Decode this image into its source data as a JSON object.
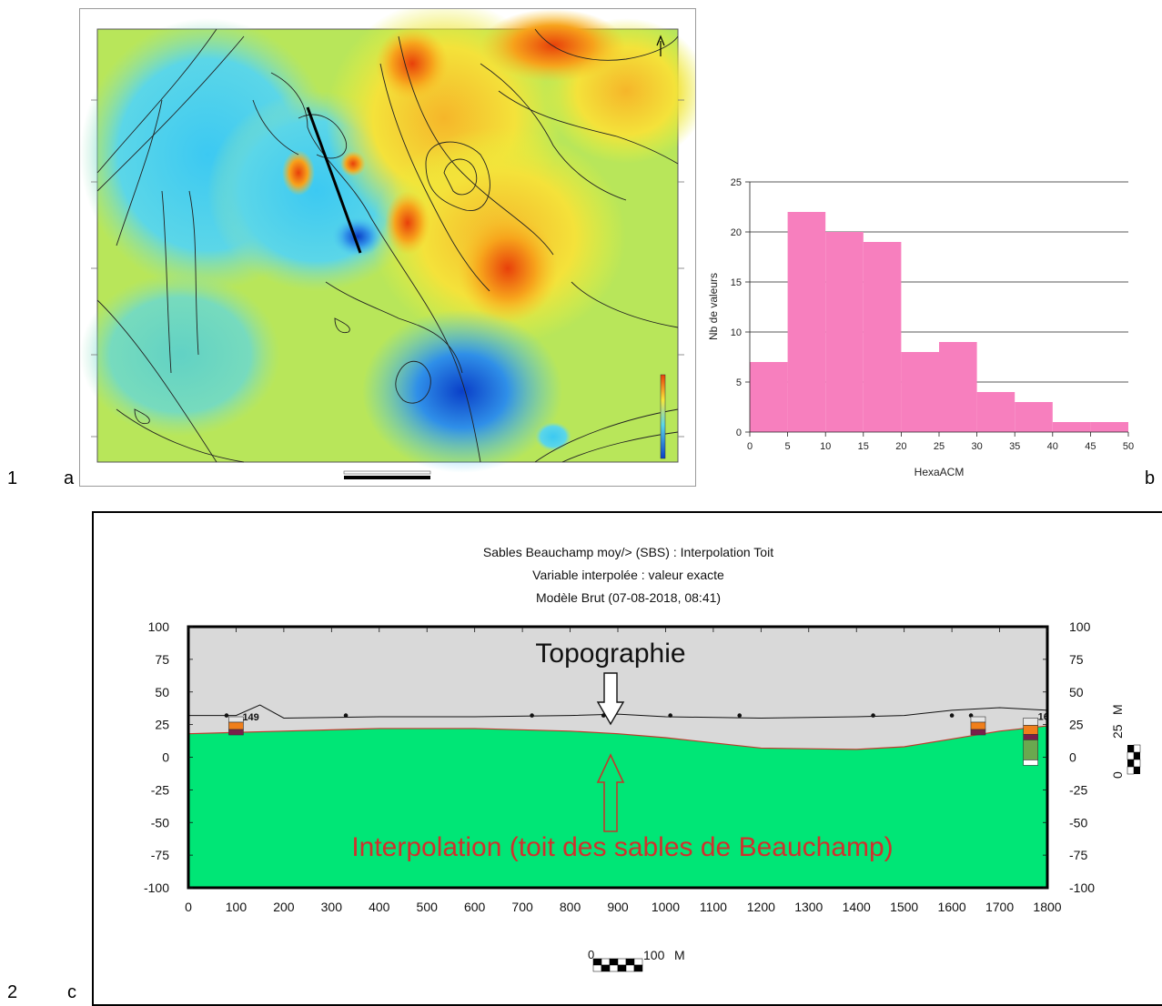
{
  "labels": {
    "row1": "1",
    "row2": "2",
    "a": "a",
    "b": "b",
    "c": "c"
  },
  "histogram": {
    "chart_data": {
      "type": "bar",
      "xlabel": "HexaACM",
      "ylabel": "Nb de valeurs",
      "bin_edges": [
        0,
        5,
        10,
        15,
        20,
        25,
        30,
        35,
        40,
        45,
        50
      ],
      "values": [
        7,
        22,
        20,
        19,
        8,
        9,
        4,
        3,
        1,
        1
      ],
      "xlim": [
        0,
        50
      ],
      "ylim": [
        0,
        25
      ],
      "x_ticks": [
        "0",
        "5",
        "10",
        "15",
        "20",
        "25",
        "30",
        "35",
        "40",
        "45",
        "50"
      ],
      "y_ticks": [
        "0",
        "5",
        "10",
        "15",
        "20",
        "25"
      ],
      "color": "#f77fbe",
      "grid": "horizontal"
    }
  },
  "section": {
    "title1": "Sables Beauchamp moy/> (SBS) : Interpolation Toit",
    "title2": "Variable interpolée : valeur exacte",
    "title3": "Modèle Brut (07-08-2018, 08:41)",
    "annotation_top": "Topographie",
    "annotation_bottom": "Interpolation (toit des sables de Beauchamp)",
    "colors": {
      "above": "#d9d9d9",
      "below": "#00e676",
      "interp_line": "#c0392b",
      "annotation_bottom": "#d0312d"
    },
    "y_ticks": [
      "100",
      "75",
      "50",
      "25",
      "0",
      "-25",
      "-50",
      "-75",
      "-100"
    ],
    "x_ticks": [
      "0",
      "100",
      "200",
      "300",
      "400",
      "500",
      "600",
      "700",
      "800",
      "900",
      "1000",
      "1100",
      "1200",
      "1300",
      "1400",
      "1500",
      "1600",
      "1700",
      "1800"
    ],
    "vertical_scale": {
      "zero": "0",
      "val": "25",
      "unit": "M"
    },
    "horizontal_scale": {
      "zero": "0",
      "val": "100",
      "unit": "M"
    },
    "well_labels": [
      "149",
      "16"
    ],
    "chart_data": {
      "type": "area",
      "xlim": [
        0,
        1800
      ],
      "ylim": [
        -100,
        100
      ],
      "series": [
        {
          "x": [
            0,
            100,
            150,
            200,
            400,
            600,
            800,
            900,
            1000,
            1200,
            1400,
            1500,
            1600,
            1700,
            1800
          ],
          "y": [
            32,
            32,
            40,
            30,
            31,
            31,
            32,
            33,
            31,
            30,
            31,
            32,
            36,
            38,
            36
          ]
        },
        {
          "x": [
            0,
            200,
            400,
            600,
            800,
            900,
            1000,
            1200,
            1400,
            1500,
            1600,
            1700,
            1800
          ],
          "y": [
            18,
            20,
            22,
            22,
            20,
            18,
            15,
            7,
            6,
            8,
            14,
            20,
            24
          ]
        }
      ]
    }
  }
}
